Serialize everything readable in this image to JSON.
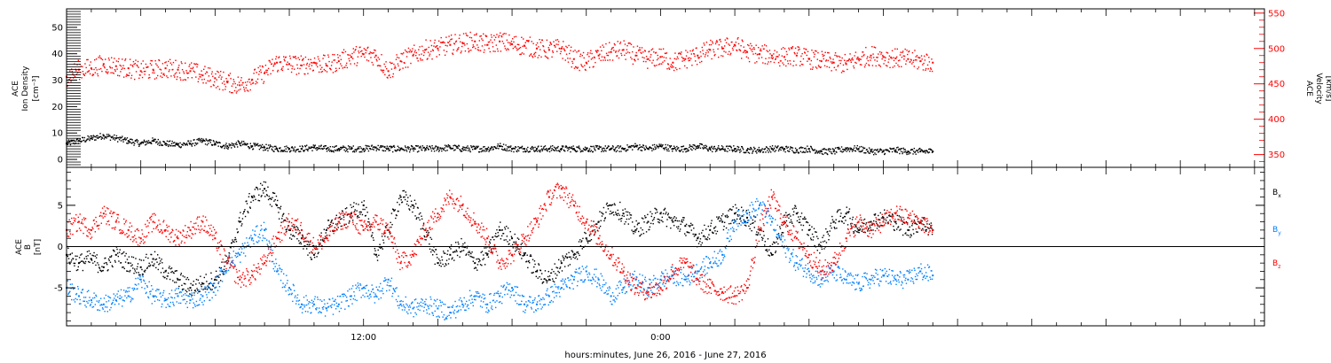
{
  "chart_data": [
    {
      "type": "scatter",
      "title": "",
      "xlabel": "",
      "ylabel_lines": [
        "ACE",
        "Ion Density",
        "[cm⁻³]"
      ],
      "y2label_lines": [
        "ACE",
        "Velocity",
        "[km/s]"
      ],
      "ylim": [
        -3,
        57
      ],
      "y2lim": [
        332,
        556
      ],
      "yticks": [
        0,
        10,
        20,
        30,
        40,
        50
      ],
      "y2ticks": [
        350,
        400,
        450,
        500,
        550
      ],
      "grid": false,
      "series": [
        {
          "color": "#000000",
          "axis": "left",
          "x_hours": [
            0,
            0.5,
            1,
            1.5,
            2,
            2.5,
            3,
            3.5,
            4,
            4.5,
            5,
            5.5,
            6,
            6.5,
            7,
            7.5,
            8,
            8.5,
            9,
            9.5,
            10,
            10.5,
            11,
            11.5,
            12,
            12.5,
            13,
            13.5,
            14,
            14.5,
            15,
            15.5,
            16,
            16.5,
            17,
            17.5,
            18,
            18.5,
            19,
            19.5,
            20,
            20.5,
            21,
            21.5,
            22,
            22.5,
            23,
            23.5,
            24,
            24.5,
            25,
            25.5,
            26,
            26.5,
            27,
            27.5,
            28,
            28.5,
            29,
            29.5,
            30,
            30.5,
            31,
            31.5,
            32,
            32.5,
            33,
            33.5,
            34,
            34.5,
            35
          ],
          "values": [
            6,
            7,
            8,
            9,
            8,
            7,
            6,
            7,
            6,
            5.5,
            6,
            7,
            6,
            5,
            6,
            5,
            4.5,
            4,
            4,
            4,
            4.5,
            4,
            4,
            4,
            4,
            4.5,
            4,
            4,
            4,
            4,
            4,
            4.5,
            4,
            4,
            4,
            5,
            4,
            4,
            4,
            4,
            4,
            4,
            4,
            4,
            4,
            4,
            5,
            4,
            5,
            4,
            4,
            5,
            4,
            4,
            4,
            3.5,
            3.5,
            4,
            4,
            3.5,
            4,
            3,
            3,
            4,
            4,
            3,
            3,
            3.5,
            3,
            3,
            3
          ]
        },
        {
          "color": "#ff0000",
          "axis": "right",
          "x_hours": [
            0,
            0.5,
            1,
            1.5,
            2,
            2.5,
            3,
            3.5,
            4,
            4.5,
            5,
            5.5,
            6,
            6.5,
            7,
            7.5,
            8,
            8.5,
            9,
            9.5,
            10,
            10.5,
            11,
            11.5,
            12,
            12.5,
            13,
            13.5,
            14,
            14.5,
            15,
            15.5,
            16,
            16.5,
            17,
            17.5,
            18,
            18.5,
            19,
            19.5,
            20,
            20.5,
            21,
            21.5,
            22,
            22.5,
            23,
            23.5,
            24,
            24.5,
            25,
            25.5,
            26,
            26.5,
            27,
            27.5,
            28,
            28.5,
            29,
            29.5,
            30,
            30.5,
            31,
            31.5,
            32,
            32.5,
            33,
            33.5,
            34,
            34.5,
            35
          ],
          "values": [
            460,
            470,
            472,
            478,
            475,
            472,
            468,
            470,
            472,
            470,
            468,
            462,
            458,
            452,
            448,
            456,
            465,
            480,
            478,
            476,
            480,
            476,
            482,
            488,
            492,
            490,
            468,
            482,
            490,
            498,
            500,
            505,
            508,
            510,
            505,
            510,
            506,
            504,
            500,
            498,
            500,
            485,
            480,
            490,
            495,
            498,
            490,
            485,
            488,
            480,
            485,
            490,
            498,
            500,
            505,
            495,
            492,
            490,
            488,
            490,
            485,
            482,
            480,
            478,
            485,
            490,
            488,
            486,
            485,
            482,
            480
          ]
        }
      ]
    },
    {
      "type": "scatter",
      "title": "",
      "xlabel": "hours:minutes, June 26, 2016 - June 27, 2016",
      "ylabel_lines": [
        "ACE",
        "B",
        "[nT]"
      ],
      "ylim": [
        -9.6,
        9.6
      ],
      "yticks": [
        -5,
        0,
        5
      ],
      "grid": false,
      "zero_line": true,
      "legend_position": "right",
      "x_tick_labels": [
        {
          "hour": 12,
          "label": "12:00"
        },
        {
          "hour": 24,
          "label": "0:00"
        }
      ],
      "series": [
        {
          "name": "B",
          "sub": "x",
          "color": "#000000",
          "x_hours": [
            0,
            0.5,
            1,
            1.5,
            2,
            2.5,
            3,
            3.5,
            4,
            4.5,
            5,
            5.5,
            6,
            6.5,
            7,
            7.5,
            8,
            8.5,
            9,
            9.5,
            10,
            10.5,
            11,
            11.5,
            12,
            12.5,
            13,
            13.5,
            14,
            14.5,
            15,
            15.5,
            16,
            16.5,
            17,
            17.5,
            18,
            18.5,
            19,
            19.5,
            20,
            20.5,
            21,
            21.5,
            22,
            22.5,
            23,
            23.5,
            24,
            24.5,
            25,
            25.5,
            26,
            26.5,
            27,
            27.5,
            28,
            28.5,
            29,
            29.5,
            30,
            30.5,
            31,
            31.5,
            32,
            32.5,
            33,
            33.5,
            34,
            34.5,
            35
          ],
          "values": [
            -1,
            -2,
            -1.5,
            -2.5,
            -1,
            -2,
            -2.5,
            -1.5,
            -3,
            -4,
            -5,
            -4.5,
            -4,
            -2,
            3,
            6,
            7,
            5,
            2,
            1,
            -1,
            2,
            3,
            4,
            5,
            -1,
            2,
            6,
            5,
            2,
            -2,
            -1,
            0,
            -2,
            -1,
            2,
            1,
            -1,
            -3,
            -4,
            -2,
            -1,
            1,
            3,
            5,
            4,
            2,
            3,
            4,
            3,
            2.5,
            1,
            2,
            3,
            4,
            3.5,
            2,
            -1,
            3,
            4,
            2,
            0,
            3,
            4,
            2,
            3,
            3.5,
            3,
            2,
            3,
            2
          ]
        },
        {
          "name": "B",
          "sub": "y",
          "color": "#0080ff",
          "x_hours": [
            0,
            0.5,
            1,
            1.5,
            2,
            2.5,
            3,
            3.5,
            4,
            4.5,
            5,
            5.5,
            6,
            6.5,
            7,
            7.5,
            8,
            8.5,
            9,
            9.5,
            10,
            10.5,
            11,
            11.5,
            12,
            12.5,
            13,
            13.5,
            14,
            14.5,
            15,
            15.5,
            16,
            16.5,
            17,
            17.5,
            18,
            18.5,
            19,
            19.5,
            20,
            20.5,
            21,
            21.5,
            22,
            22.5,
            23,
            23.5,
            24,
            24.5,
            25,
            25.5,
            26,
            26.5,
            27,
            27.5,
            28,
            28.5,
            29,
            29.5,
            30,
            30.5,
            31,
            31.5,
            32,
            32.5,
            33,
            33.5,
            34,
            34.5,
            35
          ],
          "values": [
            -5,
            -6,
            -6.5,
            -7,
            -6.5,
            -6,
            -4,
            -6,
            -6.5,
            -6,
            -6.5,
            -6,
            -5,
            -2,
            -1,
            1,
            2,
            -3,
            -5,
            -7,
            -7,
            -7.5,
            -7,
            -6,
            -5,
            -6,
            -4,
            -7,
            -7.5,
            -7,
            -7.5,
            -8,
            -7,
            -6,
            -7,
            -6,
            -5,
            -7,
            -7,
            -6,
            -5,
            -4,
            -3,
            -4,
            -6,
            -5,
            -4,
            -5,
            -4,
            -3.5,
            -4,
            -3,
            -2,
            -1,
            3,
            4,
            5,
            3,
            0,
            -2,
            -3,
            -4,
            -3,
            -4,
            -4.5,
            -4,
            -3.5,
            -4,
            -4,
            -3,
            -3.5
          ]
        },
        {
          "name": "B",
          "sub": "z",
          "color": "#ff0000",
          "x_hours": [
            0,
            0.5,
            1,
            1.5,
            2,
            2.5,
            3,
            3.5,
            4,
            4.5,
            5,
            5.5,
            6,
            6.5,
            7,
            7.5,
            8,
            8.5,
            9,
            9.5,
            10,
            10.5,
            11,
            11.5,
            12,
            12.5,
            13,
            13.5,
            14,
            14.5,
            15,
            15.5,
            16,
            16.5,
            17,
            17.5,
            18,
            18.5,
            19,
            19.5,
            20,
            20.5,
            21,
            21.5,
            22,
            22.5,
            23,
            23.5,
            24,
            24.5,
            25,
            25.5,
            26,
            26.5,
            27,
            27.5,
            28,
            28.5,
            29,
            29.5,
            30,
            30.5,
            31,
            31.5,
            32,
            32.5,
            33,
            33.5,
            34,
            34.5,
            35
          ],
          "values": [
            2,
            3,
            2,
            4,
            3,
            2,
            1,
            3,
            2,
            1,
            2,
            3,
            1,
            -2,
            -4,
            -3.5,
            -2,
            1,
            3,
            2,
            0,
            1,
            3,
            3.5,
            2,
            3,
            2,
            -2,
            -1,
            2,
            4,
            6,
            5,
            3,
            1,
            -2,
            -1,
            1,
            3,
            6,
            7,
            5,
            3,
            1,
            -1,
            -3,
            -5,
            -5.5,
            -5,
            -3,
            -2,
            -4,
            -5,
            -5.5,
            -6,
            -5,
            2,
            6,
            3,
            1,
            -1,
            -3,
            -2,
            1,
            3,
            2,
            3,
            4,
            3.5,
            3,
            2
          ]
        }
      ]
    }
  ]
}
